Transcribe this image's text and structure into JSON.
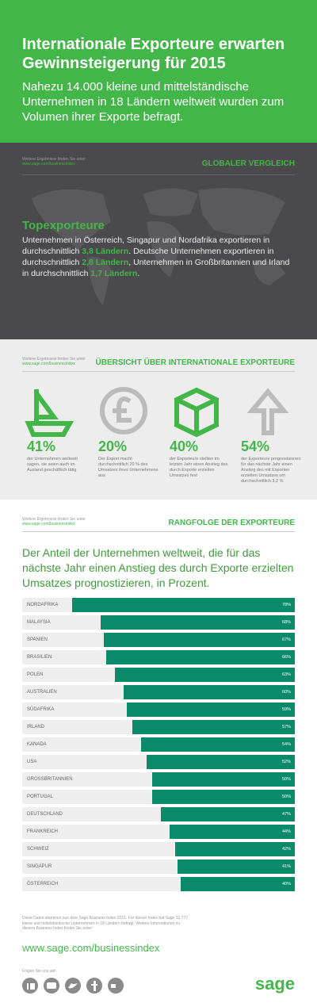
{
  "header": {
    "title": "Internationale Exporteure erwarten Gewinnsteigerung für 2015",
    "subtitle": "Nahezu 14.000 kleine und mittelständische Unternehmen in 18 Ländern weltweit wurden zum Volumen ihrer Exporte befragt."
  },
  "global": {
    "note": "Weitere Ergebnisse finden Sie unter",
    "link": "www.sage.com/businessindex",
    "heading": "GLOBALER VERGLEICH",
    "subheading": "Topexporteure",
    "body": [
      "Unternehmen in Österreich, Singapur und Nordafrika exportieren in durchschnittlich ",
      "3,8 Ländern",
      ". Deutsche Unternehmen exportieren in durchschnittlich ",
      "2,8 Ländern",
      ", Unternehmen in Großbritannien und Irland in durchschnittlich ",
      "1,7 Ländern",
      "."
    ]
  },
  "overview": {
    "note": "Weitere Ergebnisse finden Sie unter",
    "link": "www.sage.com/businessindex",
    "heading": "ÜBERSICHT ÜBER INTERNATIONALE EXPORTEURE",
    "stats": [
      {
        "value": "41%",
        "text": "der Unternehmen weltweit sagen, sie seien auch im Ausland geschäftlich tätig"
      },
      {
        "value": "20%",
        "text": "Der Export macht durchschnittlich 20 % des Umsatzes ihres Unternehmens aus"
      },
      {
        "value": "40%",
        "text": "der Exporteure stellten im letzten Jahr einen Anstieg des durch Exporte erzielten Umsatzes fest"
      },
      {
        "value": "54%",
        "text": "der Exporteure prognostizieren für das nächste Jahr einen Anstieg des mit Exporten erzielten Umsatzes um durchschnittlich 3,2 %"
      }
    ]
  },
  "ranking": {
    "note": "Weitere Ergebnisse finden Sie unter",
    "link": "www.sage.com/businessindex",
    "heading": "RANGFOLGE DER EXPORTEURE"
  },
  "chart_data": {
    "type": "bar",
    "orientation": "horizontal",
    "title": "Der Anteil der Unternehmen weltweit, die für das nächste Jahr einen Anstieg des durch Exporte erzielten Umsatzes prognostizieren, in Prozent.",
    "color": "#0b8a6b",
    "categories": [
      "NORDAFRIKA",
      "MALAYSIA",
      "SPANIEN",
      "BRASILIEN",
      "POLEN",
      "AUSTRALIEN",
      "SÜDAFRIKA",
      "IRLAND",
      "KANADA",
      "USA",
      "GROSSBRITANNIEN",
      "PORTUGAL",
      "DEUTSCHLAND",
      "FRANKREICH",
      "SCHWEIZ",
      "SINGAPUR",
      "ÖSTERREICH"
    ],
    "values": [
      78,
      68,
      67,
      66,
      63,
      60,
      59,
      57,
      54,
      52,
      50,
      50,
      47,
      44,
      42,
      41,
      40
    ],
    "value_labels": [
      "78%",
      "68%",
      "67%",
      "66%",
      "63%",
      "60%",
      "59%",
      "57%",
      "54%",
      "52%",
      "50%",
      "50%",
      "47%",
      "44%",
      "42%",
      "41%",
      "40%"
    ]
  },
  "footer": {
    "note": "Diese Daten stammen aus dem Sage Business Index 2015. Für diesen Index hat Sage 13.777 kleine und mittelständische Unternehmen in 18 Ländern befragt. Weitere Informationen zu diesem Business Index finden Sie unter:",
    "link": "www.sage.com/businessindex",
    "follow": "Folgen Sie uns auf:",
    "logo": "sage"
  }
}
